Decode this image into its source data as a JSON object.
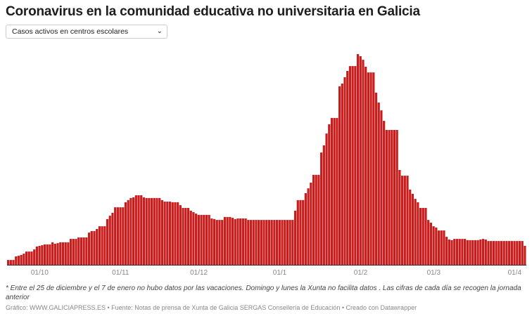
{
  "title": "Coronavirus en la comunidad educativa no universitaria en Galicia",
  "selector": {
    "selected": "Casos activos en centros escolares",
    "icon": "chevron-down-icon"
  },
  "colors": {
    "bar": "#c71e1d",
    "axis": "#333333",
    "tick_text": "#888888"
  },
  "chart_data": {
    "type": "bar",
    "title": "Coronavirus en la comunidad educativa no universitaria en Galicia",
    "xlabel": "",
    "ylabel": "",
    "y_scale_note": "relative (peak = 100), no y-axis printed",
    "grid": false,
    "x_ticks": [
      {
        "date": "2020-10-01",
        "label": "01/10"
      },
      {
        "date": "2020-11-01",
        "label": "01/11"
      },
      {
        "date": "2020-12-01",
        "label": "01/12"
      },
      {
        "date": "2021-01-01",
        "label": "01/1"
      },
      {
        "date": "2021-02-01",
        "label": "01/2"
      },
      {
        "date": "2021-03-01",
        "label": "01/3"
      },
      {
        "date": "2021-04-01",
        "label": "01/4"
      }
    ],
    "segments": [
      {
        "from": "2020-09-19",
        "to": "2020-09-21",
        "value": 2.3
      },
      {
        "from": "2020-09-22",
        "to": "2020-09-22",
        "value": 4
      },
      {
        "from": "2020-09-23",
        "to": "2020-09-23",
        "value": 4.3
      },
      {
        "from": "2020-09-24",
        "to": "2020-09-24",
        "value": 4.7
      },
      {
        "from": "2020-09-25",
        "to": "2020-09-25",
        "value": 5.3
      },
      {
        "from": "2020-09-26",
        "to": "2020-09-28",
        "value": 6.3
      },
      {
        "from": "2020-09-29",
        "to": "2020-09-29",
        "value": 7.3
      },
      {
        "from": "2020-09-30",
        "to": "2020-09-30",
        "value": 8.7
      },
      {
        "from": "2020-10-01",
        "to": "2020-10-01",
        "value": 9
      },
      {
        "from": "2020-10-02",
        "to": "2020-10-02",
        "value": 9.3
      },
      {
        "from": "2020-10-03",
        "to": "2020-10-05",
        "value": 9.7
      },
      {
        "from": "2020-10-06",
        "to": "2020-10-06",
        "value": 10.7
      },
      {
        "from": "2020-10-07",
        "to": "2020-10-07",
        "value": 10
      },
      {
        "from": "2020-10-08",
        "to": "2020-10-08",
        "value": 10.3
      },
      {
        "from": "2020-10-09",
        "to": "2020-10-12",
        "value": 10.7
      },
      {
        "from": "2020-10-13",
        "to": "2020-10-15",
        "value": 12.3
      },
      {
        "from": "2020-10-16",
        "to": "2020-10-19",
        "value": 13
      },
      {
        "from": "2020-10-20",
        "to": "2020-10-20",
        "value": 15.3
      },
      {
        "from": "2020-10-21",
        "to": "2020-10-22",
        "value": 16
      },
      {
        "from": "2020-10-23",
        "to": "2020-10-23",
        "value": 17
      },
      {
        "from": "2020-10-24",
        "to": "2020-10-26",
        "value": 18.3
      },
      {
        "from": "2020-10-27",
        "to": "2020-10-27",
        "value": 21.7
      },
      {
        "from": "2020-10-28",
        "to": "2020-10-28",
        "value": 23.3
      },
      {
        "from": "2020-10-29",
        "to": "2020-10-29",
        "value": 24.7
      },
      {
        "from": "2020-10-30",
        "to": "2020-11-02",
        "value": 27.3
      },
      {
        "from": "2020-11-03",
        "to": "2020-11-03",
        "value": 29.7
      },
      {
        "from": "2020-11-04",
        "to": "2020-11-04",
        "value": 30.7
      },
      {
        "from": "2020-11-05",
        "to": "2020-11-05",
        "value": 31.7
      },
      {
        "from": "2020-11-06",
        "to": "2020-11-06",
        "value": 32
      },
      {
        "from": "2020-11-07",
        "to": "2020-11-09",
        "value": 33
      },
      {
        "from": "2020-11-10",
        "to": "2020-11-10",
        "value": 32
      },
      {
        "from": "2020-11-11",
        "to": "2020-11-16",
        "value": 31.7
      },
      {
        "from": "2020-11-17",
        "to": "2020-11-17",
        "value": 30.7
      },
      {
        "from": "2020-11-18",
        "to": "2020-11-20",
        "value": 30
      },
      {
        "from": "2020-11-21",
        "to": "2020-11-23",
        "value": 29.7
      },
      {
        "from": "2020-11-24",
        "to": "2020-11-24",
        "value": 28.3
      },
      {
        "from": "2020-11-25",
        "to": "2020-11-27",
        "value": 27
      },
      {
        "from": "2020-11-28",
        "to": "2020-11-28",
        "value": 25.7
      },
      {
        "from": "2020-11-29",
        "to": "2020-11-29",
        "value": 25
      },
      {
        "from": "2020-11-30",
        "to": "2020-11-30",
        "value": 24.3
      },
      {
        "from": "2020-12-01",
        "to": "2020-12-05",
        "value": 23.7
      },
      {
        "from": "2020-12-06",
        "to": "2020-12-06",
        "value": 22
      },
      {
        "from": "2020-12-07",
        "to": "2020-12-07",
        "value": 21.7
      },
      {
        "from": "2020-12-08",
        "to": "2020-12-10",
        "value": 21.3
      },
      {
        "from": "2020-12-11",
        "to": "2020-12-13",
        "value": 22.7
      },
      {
        "from": "2020-12-14",
        "to": "2020-12-14",
        "value": 22.3
      },
      {
        "from": "2020-12-15",
        "to": "2020-12-15",
        "value": 21.7
      },
      {
        "from": "2020-12-16",
        "to": "2020-12-19",
        "value": 22
      },
      {
        "from": "2020-12-20",
        "to": "2021-01-06",
        "value": 21.3
      },
      {
        "from": "2021-01-07",
        "to": "2021-01-07",
        "value": 25.7
      },
      {
        "from": "2021-01-08",
        "to": "2021-01-10",
        "value": 30.7
      },
      {
        "from": "2021-01-11",
        "to": "2021-01-11",
        "value": 34
      },
      {
        "from": "2021-01-12",
        "to": "2021-01-12",
        "value": 36.3
      },
      {
        "from": "2021-01-13",
        "to": "2021-01-13",
        "value": 39
      },
      {
        "from": "2021-01-14",
        "to": "2021-01-16",
        "value": 42.7
      },
      {
        "from": "2021-01-17",
        "to": "2021-01-17",
        "value": 53.3
      },
      {
        "from": "2021-01-18",
        "to": "2021-01-18",
        "value": 56.7
      },
      {
        "from": "2021-01-19",
        "to": "2021-01-19",
        "value": 62.3
      },
      {
        "from": "2021-01-20",
        "to": "2021-01-20",
        "value": 66.7
      },
      {
        "from": "2021-01-21",
        "to": "2021-01-23",
        "value": 69.7
      },
      {
        "from": "2021-01-24",
        "to": "2021-01-24",
        "value": 84.7
      },
      {
        "from": "2021-01-25",
        "to": "2021-01-25",
        "value": 86
      },
      {
        "from": "2021-01-26",
        "to": "2021-01-26",
        "value": 89
      },
      {
        "from": "2021-01-27",
        "to": "2021-01-27",
        "value": 92
      },
      {
        "from": "2021-01-28",
        "to": "2021-01-30",
        "value": 94.3
      },
      {
        "from": "2021-01-31",
        "to": "2021-01-31",
        "value": 100
      },
      {
        "from": "2021-02-01",
        "to": "2021-02-01",
        "value": 99
      },
      {
        "from": "2021-02-02",
        "to": "2021-02-02",
        "value": 97.3
      },
      {
        "from": "2021-02-03",
        "to": "2021-02-03",
        "value": 94
      },
      {
        "from": "2021-02-04",
        "to": "2021-02-06",
        "value": 91.3
      },
      {
        "from": "2021-02-07",
        "to": "2021-02-07",
        "value": 81.7
      },
      {
        "from": "2021-02-08",
        "to": "2021-02-08",
        "value": 77
      },
      {
        "from": "2021-02-09",
        "to": "2021-02-09",
        "value": 73.3
      },
      {
        "from": "2021-02-10",
        "to": "2021-02-10",
        "value": 68.3
      },
      {
        "from": "2021-02-11",
        "to": "2021-02-15",
        "value": 64
      },
      {
        "from": "2021-02-16",
        "to": "2021-02-16",
        "value": 45
      },
      {
        "from": "2021-02-17",
        "to": "2021-02-19",
        "value": 42.3
      },
      {
        "from": "2021-02-20",
        "to": "2021-02-20",
        "value": 35.7
      },
      {
        "from": "2021-02-21",
        "to": "2021-02-21",
        "value": 33.7
      },
      {
        "from": "2021-02-22",
        "to": "2021-02-22",
        "value": 31.3
      },
      {
        "from": "2021-02-23",
        "to": "2021-02-23",
        "value": 29.7
      },
      {
        "from": "2021-02-24",
        "to": "2021-02-26",
        "value": 27
      },
      {
        "from": "2021-02-27",
        "to": "2021-02-27",
        "value": 21.3
      },
      {
        "from": "2021-02-28",
        "to": "2021-02-28",
        "value": 20
      },
      {
        "from": "2021-03-01",
        "to": "2021-03-01",
        "value": 18.3
      },
      {
        "from": "2021-03-02",
        "to": "2021-03-02",
        "value": 17.7
      },
      {
        "from": "2021-03-03",
        "to": "2021-03-05",
        "value": 16.3
      },
      {
        "from": "2021-03-06",
        "to": "2021-03-06",
        "value": 13.3
      },
      {
        "from": "2021-03-07",
        "to": "2021-03-07",
        "value": 12
      },
      {
        "from": "2021-03-08",
        "to": "2021-03-08",
        "value": 11.7
      },
      {
        "from": "2021-03-09",
        "to": "2021-03-13",
        "value": 12.3
      },
      {
        "from": "2021-03-14",
        "to": "2021-03-18",
        "value": 11.7
      },
      {
        "from": "2021-03-19",
        "to": "2021-03-19",
        "value": 12
      },
      {
        "from": "2021-03-20",
        "to": "2021-03-20",
        "value": 12.3
      },
      {
        "from": "2021-03-21",
        "to": "2021-03-21",
        "value": 12
      },
      {
        "from": "2021-03-22",
        "to": "2021-04-04",
        "value": 11.3
      },
      {
        "from": "2021-04-05",
        "to": "2021-04-05",
        "value": 9
      }
    ]
  },
  "footer": {
    "note": "* Entre el 25 de diciembre y el 7 de enero no hubo datos por las vacaciones. Domingo y lunes la Xunta no facilita datos . Las cifras de cada día se recogen la jornada anterior",
    "byline": "Gráfico: WWW.GALICIAPRESS.ES • Fuente: Notas de prensa de Xunta de Galicia SERGAS Consellería de Educación • Creado con Datawrapper"
  }
}
